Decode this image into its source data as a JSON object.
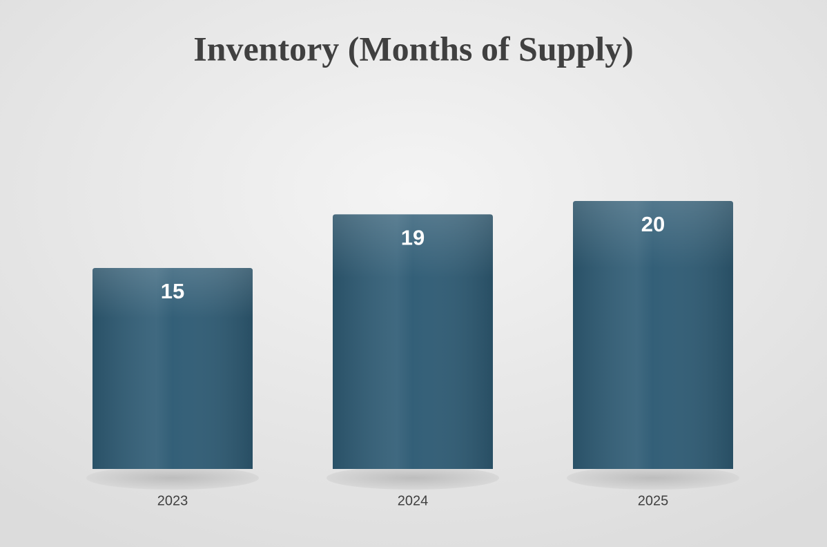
{
  "chart_data": {
    "type": "bar",
    "title": "Inventory (Months of Supply)",
    "categories": [
      "2023",
      "2024",
      "2025"
    ],
    "values": [
      15,
      19,
      20
    ],
    "color": "#2f5c75"
  }
}
